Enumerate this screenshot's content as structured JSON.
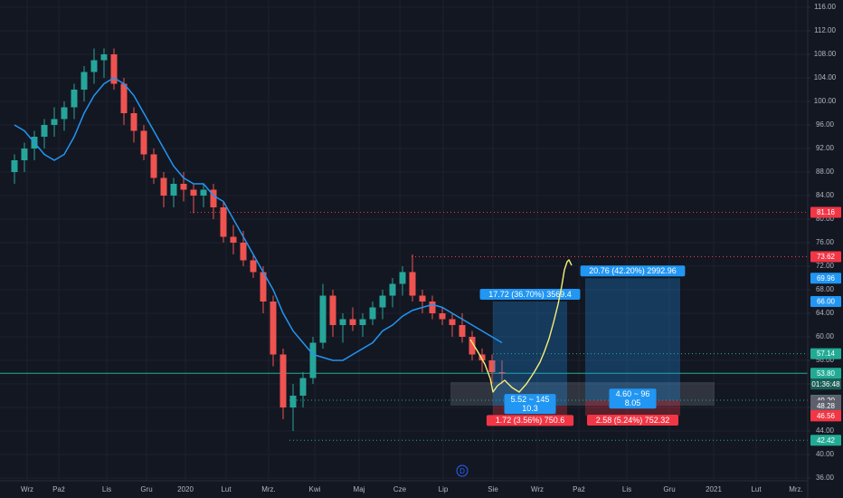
{
  "chart_data": {
    "type": "candlestick",
    "categories": [
      "Wrz",
      "Paź",
      "Lis",
      "Gru",
      "2020",
      "Lut",
      "Mrz.",
      "Kwi",
      "Maj",
      "Cze",
      "Lip",
      "Sie",
      "Wrz",
      "Paź",
      "Lis",
      "Gru",
      "2021",
      "Lut",
      "Mrz."
    ],
    "ylim": [
      36,
      116
    ],
    "yticks": [
      {
        "value": 36,
        "label": "36.00"
      },
      {
        "value": 40,
        "label": "40.00"
      },
      {
        "value": 44,
        "label": "44.00"
      },
      {
        "value": 48,
        "label": "48.00"
      },
      {
        "value": 52,
        "label": "52.00"
      },
      {
        "value": 56,
        "label": "56.00"
      },
      {
        "value": 60,
        "label": "60.00"
      },
      {
        "value": 64,
        "label": "64.00"
      },
      {
        "value": 68,
        "label": "68.00"
      },
      {
        "value": 72,
        "label": "72.00"
      },
      {
        "value": 76,
        "label": "76.00"
      },
      {
        "value": 80,
        "label": "80.00"
      },
      {
        "value": 84,
        "label": "84.00"
      },
      {
        "value": 88,
        "label": "88.00"
      },
      {
        "value": 92,
        "label": "92.00"
      },
      {
        "value": 96,
        "label": "96.00"
      },
      {
        "value": 100,
        "label": "100.00"
      },
      {
        "value": 104,
        "label": "104.00"
      },
      {
        "value": 108,
        "label": "108.00"
      },
      {
        "value": 112,
        "label": "112.00"
      },
      {
        "value": 116,
        "label": "116.00"
      }
    ],
    "grid": true,
    "up_color": "#26a69a",
    "down_color": "#ef5350",
    "ohlc": [
      [
        88,
        91,
        86,
        90
      ],
      [
        90,
        93,
        88,
        92
      ],
      [
        92,
        95,
        90,
        94
      ],
      [
        94,
        97,
        92,
        96
      ],
      [
        96,
        99,
        94,
        97
      ],
      [
        97,
        100,
        95,
        99
      ],
      [
        99,
        103,
        97,
        102
      ],
      [
        102,
        106,
        100,
        105
      ],
      [
        105,
        109,
        103,
        107
      ],
      [
        107,
        109,
        104,
        108
      ],
      [
        108,
        109,
        102,
        103
      ],
      [
        103,
        104,
        96,
        98
      ],
      [
        98,
        99,
        93,
        95
      ],
      [
        95,
        96,
        90,
        91
      ],
      [
        91,
        92,
        86,
        87
      ],
      [
        87,
        88,
        82,
        84
      ],
      [
        84,
        87,
        82,
        86
      ],
      [
        86,
        88,
        83,
        85
      ],
      [
        85,
        86,
        81,
        84
      ],
      [
        84,
        86,
        82,
        85
      ],
      [
        85,
        86,
        80,
        82
      ],
      [
        82,
        83,
        76,
        77
      ],
      [
        77,
        79,
        74,
        76
      ],
      [
        76,
        78,
        72,
        73
      ],
      [
        73,
        74,
        70,
        71
      ],
      [
        71,
        72,
        64,
        66
      ],
      [
        66,
        67,
        55,
        57
      ],
      [
        57,
        58,
        46,
        48
      ],
      [
        48,
        52,
        44,
        50
      ],
      [
        50,
        54,
        48,
        53
      ],
      [
        53,
        60,
        52,
        59
      ],
      [
        59,
        69,
        58,
        67
      ],
      [
        67,
        68,
        60,
        62
      ],
      [
        62,
        64,
        59,
        63
      ],
      [
        63,
        65,
        61,
        62
      ],
      [
        62,
        64,
        60,
        63
      ],
      [
        63,
        66,
        62,
        65
      ],
      [
        65,
        68,
        63,
        67
      ],
      [
        67,
        70,
        65,
        69
      ],
      [
        69,
        72,
        67,
        71
      ],
      [
        71,
        74,
        66,
        67
      ],
      [
        67,
        68,
        64,
        66
      ],
      [
        66,
        67,
        63,
        64
      ],
      [
        64,
        65,
        62,
        63
      ],
      [
        63,
        64,
        60,
        62
      ],
      [
        62,
        64,
        59,
        60
      ],
      [
        60,
        61,
        56,
        57
      ],
      [
        57,
        58,
        54,
        56
      ],
      [
        56,
        57,
        52,
        54
      ],
      [
        54,
        56,
        52,
        53.8
      ]
    ],
    "ma": {
      "color": "#2196f3",
      "values": [
        96,
        95,
        93,
        91,
        90,
        91,
        94,
        98,
        101,
        103,
        104,
        103,
        101,
        98,
        95,
        92,
        89,
        87,
        86,
        86,
        84,
        83,
        80,
        77,
        74,
        71,
        68,
        64,
        61,
        59,
        57,
        56.5,
        56,
        56,
        57,
        58,
        59,
        61,
        62,
        63.5,
        64.5,
        65,
        65.5,
        65,
        64,
        63,
        62,
        61,
        60,
        59
      ]
    },
    "levels": [
      {
        "value": 81.16,
        "label": "81.16",
        "color": "#f23645"
      },
      {
        "value": 73.62,
        "label": "73.62",
        "color": "#f23645"
      },
      {
        "value": 57.14,
        "label": "57.14",
        "color": "#22ab94"
      },
      {
        "value": 53.8,
        "label": "53.80",
        "color": "#22ab94"
      },
      {
        "value": 49.24,
        "label": "49.24",
        "color": "#22ab94"
      },
      {
        "value": 42.42,
        "label": "42.42",
        "color": "#22ab94"
      }
    ],
    "price_labels": [
      {
        "value": 69.96,
        "label": "69.96",
        "color": "#2196f3"
      },
      {
        "value": 66,
        "label": "66.00",
        "color": "#2196f3"
      },
      {
        "value": 49.2,
        "label": "49.20",
        "color": "#5d606b"
      },
      {
        "value": 48.28,
        "label": "48.28",
        "color": "#5d606b"
      },
      {
        "value": 46.62,
        "label": "46.62",
        "color": "#f23645"
      },
      {
        "value": 46.56,
        "label": "46.56",
        "color": "#f23645"
      }
    ],
    "countdown": "01:36:48",
    "positions": [
      {
        "entry": 48.28,
        "target": 66,
        "stop": 46.56,
        "target_label": "17.72 (36.70%) 3569.4",
        "stop_label": "1.72 (3.56%) 750.6",
        "center_label": [
          "5.52 ~ 145",
          "10.3"
        ]
      },
      {
        "entry": 49.2,
        "target": 69.96,
        "stop": 46.62,
        "target_label": "20.76 (42.20%) 2992.96",
        "stop_label": "2.58 (5.24%) 752.32",
        "center_label": [
          "4.60 ~ 96",
          "8.05"
        ]
      }
    ]
  }
}
